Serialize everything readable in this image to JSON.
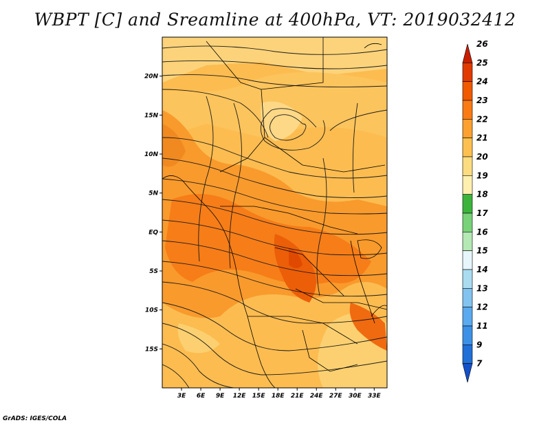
{
  "title": "WBPT [C] and Sreamline at 400hPa, VT: 2019032412",
  "credit": "GrADS: IGES/COLA",
  "map": {
    "lat_labels": [
      "20N",
      "15N",
      "10N",
      "5N",
      "EQ",
      "5S",
      "10S",
      "15S"
    ],
    "lon_labels": [
      "3E",
      "6E",
      "9E",
      "12E",
      "15E",
      "18E",
      "21E",
      "24E",
      "27E",
      "30E",
      "33E"
    ],
    "lat_values": [
      20,
      15,
      10,
      5,
      0,
      -5,
      -10,
      -15
    ],
    "lon_values": [
      3,
      6,
      9,
      12,
      15,
      18,
      21,
      24,
      27,
      30,
      33
    ],
    "lat_range": [
      -20,
      25
    ],
    "lon_range": [
      0,
      35
    ]
  },
  "colorbar": {
    "labels": [
      "26",
      "25",
      "24",
      "23",
      "22",
      "21",
      "20",
      "19",
      "18",
      "17",
      "16",
      "15",
      "14",
      "13",
      "12",
      "11",
      "9",
      "7"
    ],
    "colors": [
      "#c81e00",
      "#e03a00",
      "#f05a00",
      "#fa7a14",
      "#fca030",
      "#fcc050",
      "#fcdc80",
      "#fff0b0",
      "#3cb43c",
      "#78d278",
      "#b4e8b4",
      "#e6f6fa",
      "#aadcf0",
      "#82c3f0",
      "#5aaaf0",
      "#3c91e6",
      "#2070d8",
      "#1450c8"
    ]
  }
}
